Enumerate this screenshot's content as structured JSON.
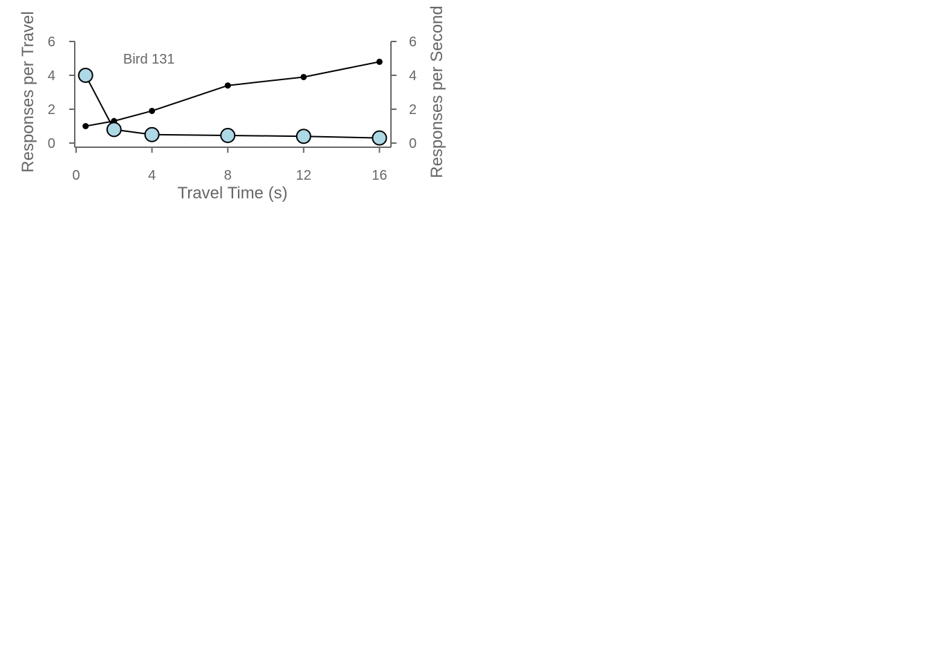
{
  "chart_data": {
    "type": "line",
    "annotation": "Bird 131",
    "xlabel": "Travel Time (s)",
    "ylabel_left": "Responses per Travel",
    "ylabel_right": "Responses per Second",
    "x_ticks": [
      0,
      4,
      8,
      12,
      16
    ],
    "y_ticks_left": [
      0,
      2,
      4,
      6
    ],
    "y_ticks_right": [
      0,
      2,
      4,
      6
    ],
    "xlim": [
      0,
      16.5
    ],
    "ylim_left": [
      0,
      6
    ],
    "ylim_right": [
      0,
      6
    ],
    "grid": false,
    "series": [
      {
        "axis": "left",
        "marker": "small-black-dot",
        "color": "#000000",
        "x": [
          0.5,
          2,
          4,
          8,
          12,
          16
        ],
        "y": [
          1.0,
          1.3,
          1.9,
          3.4,
          3.9,
          4.8
        ]
      },
      {
        "axis": "right",
        "marker": "large-open-circle",
        "color": "#add8e6",
        "x": [
          0.5,
          2,
          4,
          8,
          12,
          16
        ],
        "y": [
          4.0,
          0.8,
          0.5,
          0.45,
          0.4,
          0.3
        ]
      }
    ]
  }
}
